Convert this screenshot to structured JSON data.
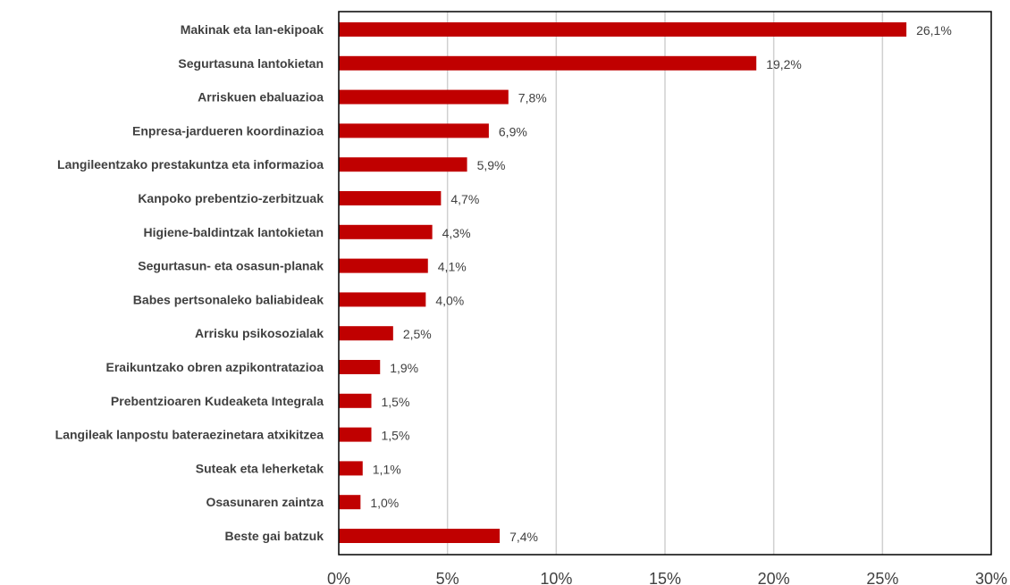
{
  "chart_data": {
    "type": "bar",
    "orientation": "horizontal",
    "categories": [
      "Makinak eta lan-ekipoak",
      "Segurtasuna lantokietan",
      "Arriskuen ebaluazioa",
      "Enpresa-jardueren koordinazioa",
      "Langileentzako prestakuntza eta informazioa",
      "Kanpoko prebentzio-zerbitzuak",
      "Higiene-baldintzak lantokietan",
      "Segurtasun- eta osasun-planak",
      "Babes pertsonaleko baliabideak",
      "Arrisku psikosozialak",
      "Eraikuntzako obren azpikontratazioa",
      "Prebentzioaren Kudeaketa Integrala",
      "Langileak lanpostu bateraezinetara atxikitzea",
      "Suteak eta leherketak",
      "Osasunaren zaintza",
      "Beste gai batzuk"
    ],
    "values": [
      26.1,
      19.2,
      7.8,
      6.9,
      5.9,
      4.7,
      4.3,
      4.1,
      4.0,
      2.5,
      1.9,
      1.5,
      1.5,
      1.1,
      1.0,
      7.4
    ],
    "value_labels": [
      "26,1%",
      "19,2%",
      "7,8%",
      "6,9%",
      "5,9%",
      "4,7%",
      "4,3%",
      "4,1%",
      "4,0%",
      "2,5%",
      "1,9%",
      "1,5%",
      "1,5%",
      "1,1%",
      "1,0%",
      "7,4%"
    ],
    "xticks": [
      0,
      5,
      10,
      15,
      20,
      25,
      30
    ],
    "xtick_labels": [
      "0%",
      "5%",
      "10%",
      "15%",
      "20%",
      "25%",
      "30%"
    ],
    "xlim": [
      0,
      30
    ],
    "grid": true,
    "bar_color": "#c00000",
    "title": "",
    "xlabel": "",
    "ylabel": ""
  }
}
